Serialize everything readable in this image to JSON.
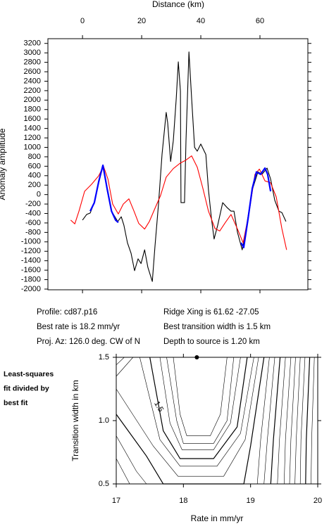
{
  "chart_data": [
    {
      "type": "line",
      "xlabel": "Distance (km)",
      "ylabel": "Anomaly amplitude",
      "xaxis_position": "top",
      "xlim": [
        -11.7,
        76.2
      ],
      "xticks": [
        0,
        20,
        40,
        60
      ],
      "ylim": [
        -2015,
        3300
      ],
      "yticks": [
        -2000,
        -1800,
        -1600,
        -1400,
        -1200,
        -1000,
        -800,
        -600,
        -400,
        -200,
        0,
        200,
        400,
        600,
        800,
        1000,
        1200,
        1400,
        1600,
        1800,
        2000,
        2200,
        2400,
        2600,
        2800,
        3000,
        3200
      ],
      "series": [
        {
          "color": "#000000",
          "x": [
            0.0,
            1.4,
            2.6,
            3.8,
            5.5,
            6.9,
            8.3,
            9.8,
            11.9,
            13.1,
            14.0,
            15.2,
            16.4,
            17.6,
            18.8,
            19.8,
            21.0,
            22.1,
            23.6,
            24.5,
            25.7,
            26.9,
            28.3,
            28.8,
            29.8,
            30.7,
            31.7,
            32.4,
            33.1,
            33.3,
            34.5,
            35.0,
            36.0,
            36.9,
            37.9,
            38.8,
            40.0,
            41.7,
            42.6,
            43.6,
            44.5,
            45.7,
            47.4,
            48.8,
            50.2,
            51.2,
            52.4,
            54.0,
            55.5,
            57.4,
            59.3,
            60.7,
            62.4,
            63.6,
            65.0,
            66.4,
            67.4,
            68.8
          ],
          "values": [
            -540,
            -420,
            -390,
            -200,
            250,
            620,
            100,
            -350,
            -570,
            -470,
            -650,
            -1020,
            -1240,
            -1610,
            -1360,
            -1460,
            -1170,
            -1540,
            -1840,
            -1090,
            -200,
            850,
            1740,
            1520,
            700,
            1140,
            2040,
            2810,
            2190,
            -170,
            -170,
            1140,
            3020,
            2040,
            1000,
            920,
            1070,
            850,
            100,
            -500,
            -940,
            -650,
            -170,
            -270,
            -350,
            -350,
            -800,
            -1170,
            -650,
            100,
            480,
            430,
            560,
            330,
            -120,
            -350,
            -380,
            -570
          ]
        },
        {
          "color": "#ff0000",
          "x": [
            -4.0,
            -2.6,
            -1.2,
            0.7,
            3.1,
            5.5,
            7.1,
            8.6,
            10.2,
            12.1,
            13.8,
            15.7,
            17.4,
            19.0,
            21.0,
            22.6,
            24.5,
            26.4,
            28.3,
            30.7,
            33.1,
            35.0,
            36.9,
            38.8,
            40.7,
            42.6,
            44.8,
            46.4,
            48.3,
            50.2,
            52.4,
            54.3,
            56.4,
            58.3,
            59.8,
            61.7,
            63.6,
            65.5,
            67.4,
            69.0
          ],
          "values": [
            -540,
            -620,
            -350,
            70,
            220,
            400,
            600,
            330,
            -200,
            -410,
            -200,
            -90,
            -350,
            -610,
            -730,
            -570,
            -290,
            -20,
            370,
            550,
            670,
            730,
            820,
            580,
            130,
            -350,
            -720,
            -770,
            -590,
            -420,
            -730,
            -1020,
            -350,
            430,
            540,
            290,
            250,
            -50,
            -720,
            -1170
          ]
        },
        {
          "color": "#0000ff",
          "x": [
            2.6,
            4.0,
            5.5,
            6.9,
            8.3,
            9.8,
            11.2,
            12.1,
            30.0,
            53.6,
            54.5,
            56.0,
            57.4,
            58.8,
            60.2,
            61.7,
            62.6,
            63.6
          ],
          "values": [
            -350,
            -170,
            280,
            620,
            130,
            -350,
            -540,
            -590,
            null,
            -1020,
            -1120,
            -500,
            130,
            480,
            430,
            560,
            430,
            70
          ]
        }
      ]
    },
    {
      "type": "contour",
      "title_lines": [
        "Least-squares",
        "fit divided by",
        "best fit"
      ],
      "xlabel": "Rate in mm/yr",
      "ylabel": "Transition width in km",
      "xlim": [
        17,
        20
      ],
      "xticks": [
        17,
        18,
        19,
        20
      ],
      "ylim": [
        0.5,
        1.5
      ],
      "yticks": [
        0.5,
        {
          "value": 1,
          "label": "1.0"
        },
        1.5
      ],
      "color": "#000000",
      "best_fit": {
        "x": 18.2,
        "y": 1.5
      },
      "annotation": {
        "text": "1.5",
        "x": 17.63,
        "y": 1.11
      },
      "contours": [
        {
          "width": 0.6,
          "x": [
            17.85,
            17.95,
            18.05,
            18.4,
            18.55,
            18.65
          ],
          "y": [
            1.5,
            1.05,
            0.88,
            0.88,
            1.05,
            1.5
          ]
        },
        {
          "width": 0.6,
          "x": [
            17.75,
            17.9,
            18.0,
            18.45,
            18.65,
            18.75
          ],
          "y": [
            1.5,
            1.0,
            0.82,
            0.82,
            1.0,
            1.5
          ]
        },
        {
          "width": 0.6,
          "x": [
            17.65,
            17.8,
            17.98,
            18.45,
            18.7,
            18.85
          ],
          "y": [
            1.5,
            0.98,
            0.77,
            0.77,
            0.98,
            1.5
          ]
        },
        {
          "width": 1.2,
          "x": [
            17.5,
            17.7,
            17.95,
            18.45,
            18.8,
            18.95
          ],
          "y": [
            1.5,
            0.92,
            0.7,
            0.7,
            0.95,
            1.5
          ]
        },
        {
          "width": 0.6,
          "x": [
            17.35,
            17.65,
            17.95,
            18.5,
            18.85,
            19.05
          ],
          "y": [
            1.5,
            0.85,
            0.64,
            0.64,
            0.9,
            1.5
          ]
        },
        {
          "width": 0.6,
          "x": [
            17.0,
            17.55,
            17.92,
            18.6,
            18.92,
            19.12
          ],
          "y": [
            1.25,
            0.8,
            0.56,
            0.56,
            0.85,
            1.5
          ]
        },
        {
          "width": 1.2,
          "x": [
            17.0,
            17.45,
            17.7,
            18.9,
            19.0,
            19.2
          ],
          "y": [
            1.05,
            0.72,
            0.5,
            0.5,
            0.8,
            1.5
          ]
        },
        {
          "width": 0.6,
          "x": [
            17.0,
            17.3,
            17.45
          ],
          "y": [
            0.88,
            0.6,
            0.5
          ]
        },
        {
          "width": 0.6,
          "x": [
            17.0,
            17.2
          ],
          "y": [
            0.7,
            0.5
          ]
        },
        {
          "width": 0.6,
          "x": [
            17.0,
            17.25
          ],
          "y": [
            1.35,
            1.5
          ]
        },
        {
          "width": 0.6,
          "x": [
            17.0,
            17.12
          ],
          "y": [
            1.44,
            1.5
          ]
        },
        {
          "width": 0.6,
          "x": [
            19.1,
            19.15,
            19.28
          ],
          "y": [
            0.5,
            0.85,
            1.5
          ]
        },
        {
          "width": 0.6,
          "x": [
            19.2,
            19.25,
            19.36
          ],
          "y": [
            0.5,
            0.85,
            1.5
          ]
        },
        {
          "width": 1.2,
          "x": [
            19.3,
            19.34,
            19.44
          ],
          "y": [
            0.5,
            0.85,
            1.5
          ]
        },
        {
          "width": 0.6,
          "x": [
            19.4,
            19.43,
            19.52
          ],
          "y": [
            0.5,
            0.85,
            1.5
          ]
        },
        {
          "width": 0.6,
          "x": [
            19.5,
            19.52,
            19.6
          ],
          "y": [
            0.5,
            0.85,
            1.5
          ]
        },
        {
          "width": 0.6,
          "x": [
            19.58,
            19.6,
            19.67
          ],
          "y": [
            0.5,
            0.85,
            1.5
          ]
        },
        {
          "width": 0.6,
          "x": [
            19.66,
            19.68,
            19.74
          ],
          "y": [
            0.5,
            0.85,
            1.5
          ]
        },
        {
          "width": 0.6,
          "x": [
            19.74,
            19.75,
            19.81
          ],
          "y": [
            0.5,
            0.85,
            1.5
          ]
        },
        {
          "width": 1.2,
          "x": [
            19.82,
            19.83,
            19.88
          ],
          "y": [
            0.5,
            0.85,
            1.5
          ]
        },
        {
          "width": 0.6,
          "x": [
            19.9,
            19.91,
            19.95
          ],
          "y": [
            0.5,
            0.85,
            1.5
          ]
        }
      ]
    }
  ],
  "info": [
    "Profile: cd87.p16",
    "Ridge Xing is 61.62 -27.05",
    "Best rate is 18.2 mm/yr",
    "Best transition width is 1.5 km",
    "Proj. Az: 126.0 deg. CW of N",
    "Depth to source is   1.20 km"
  ]
}
